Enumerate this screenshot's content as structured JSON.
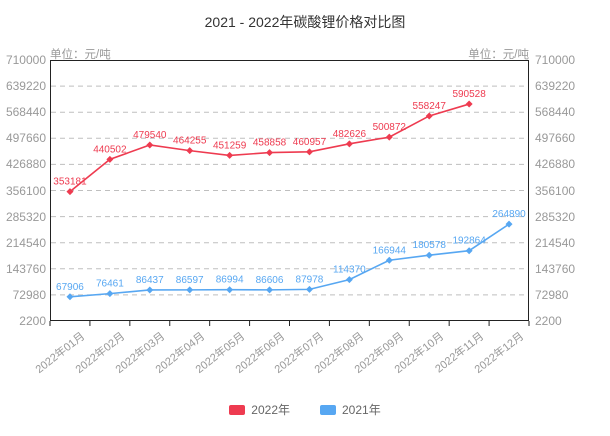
{
  "title": "2021 - 2022年碳酸锂价格对比图",
  "axis": {
    "unit_left": "单位：元/吨",
    "unit_right": "单位：元/吨"
  },
  "legend": [
    {
      "label": "2022年",
      "color": "#ee3b50"
    },
    {
      "label": "2021年",
      "color": "#57a7f2"
    }
  ],
  "colors": {
    "grid": "#bfbfbf",
    "axis_border": "#222222",
    "tick_text": "#999999"
  },
  "chart_data": {
    "type": "line",
    "title": "2021 - 2022年碳酸锂价格对比图",
    "categories": [
      "2022年01月",
      "2022年02月",
      "2022年03月",
      "2022年04月",
      "2022年05月",
      "2022年06月",
      "2022年07月",
      "2022年08月",
      "2022年09月",
      "2022年10月",
      "2022年11月",
      "2022年12月"
    ],
    "series": [
      {
        "name": "2022年",
        "color": "#ee3b50",
        "values": [
          353181,
          440502,
          479540,
          464255,
          451259,
          458858,
          460957,
          482626,
          500872,
          558247,
          590528
        ]
      },
      {
        "name": "2021年",
        "color": "#57a7f2",
        "values": [
          67906,
          76461,
          86437,
          86597,
          86994,
          86606,
          87978,
          114370,
          166944,
          180578,
          192864,
          264890
        ]
      }
    ],
    "ylabel": "单位：元/吨",
    "ylim": [
      2200,
      710000
    ],
    "y_ticks": [
      710000,
      639220,
      568440,
      497660,
      426880,
      356100,
      285320,
      214540,
      143760,
      72980,
      2200
    ],
    "grid": "horizontal-dashed",
    "legend_position": "bottom",
    "marker": "diamond",
    "data_labels": true
  }
}
